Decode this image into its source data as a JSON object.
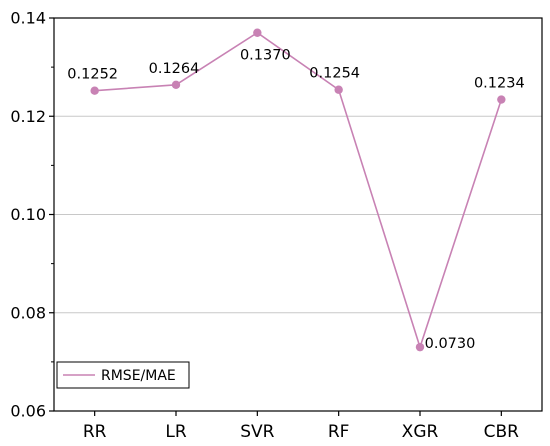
{
  "chart_data": {
    "type": "line",
    "categories": [
      "RR",
      "LR",
      "SVR",
      "RF",
      "XGR",
      "CBR"
    ],
    "series": [
      {
        "name": "RMSE/MAE",
        "values": [
          0.1252,
          0.1264,
          0.137,
          0.1254,
          0.073,
          0.1234
        ],
        "value_labels": [
          "0.1252",
          "0.1264",
          "0.1370",
          "0.1254",
          "0.0730",
          "0.1234"
        ],
        "color": "#c882b4"
      }
    ],
    "title": "",
    "xlabel": "",
    "ylabel": "",
    "ylim": [
      0.06,
      0.14
    ],
    "yticks": [
      0.06,
      0.08,
      0.1,
      0.12,
      0.14
    ],
    "ytick_labels": [
      "0.06",
      "0.08",
      "0.10",
      "0.12",
      "0.14"
    ],
    "grid": "horizontal",
    "legend": "bottom-left",
    "gridline_color": "#c8c8c8"
  }
}
